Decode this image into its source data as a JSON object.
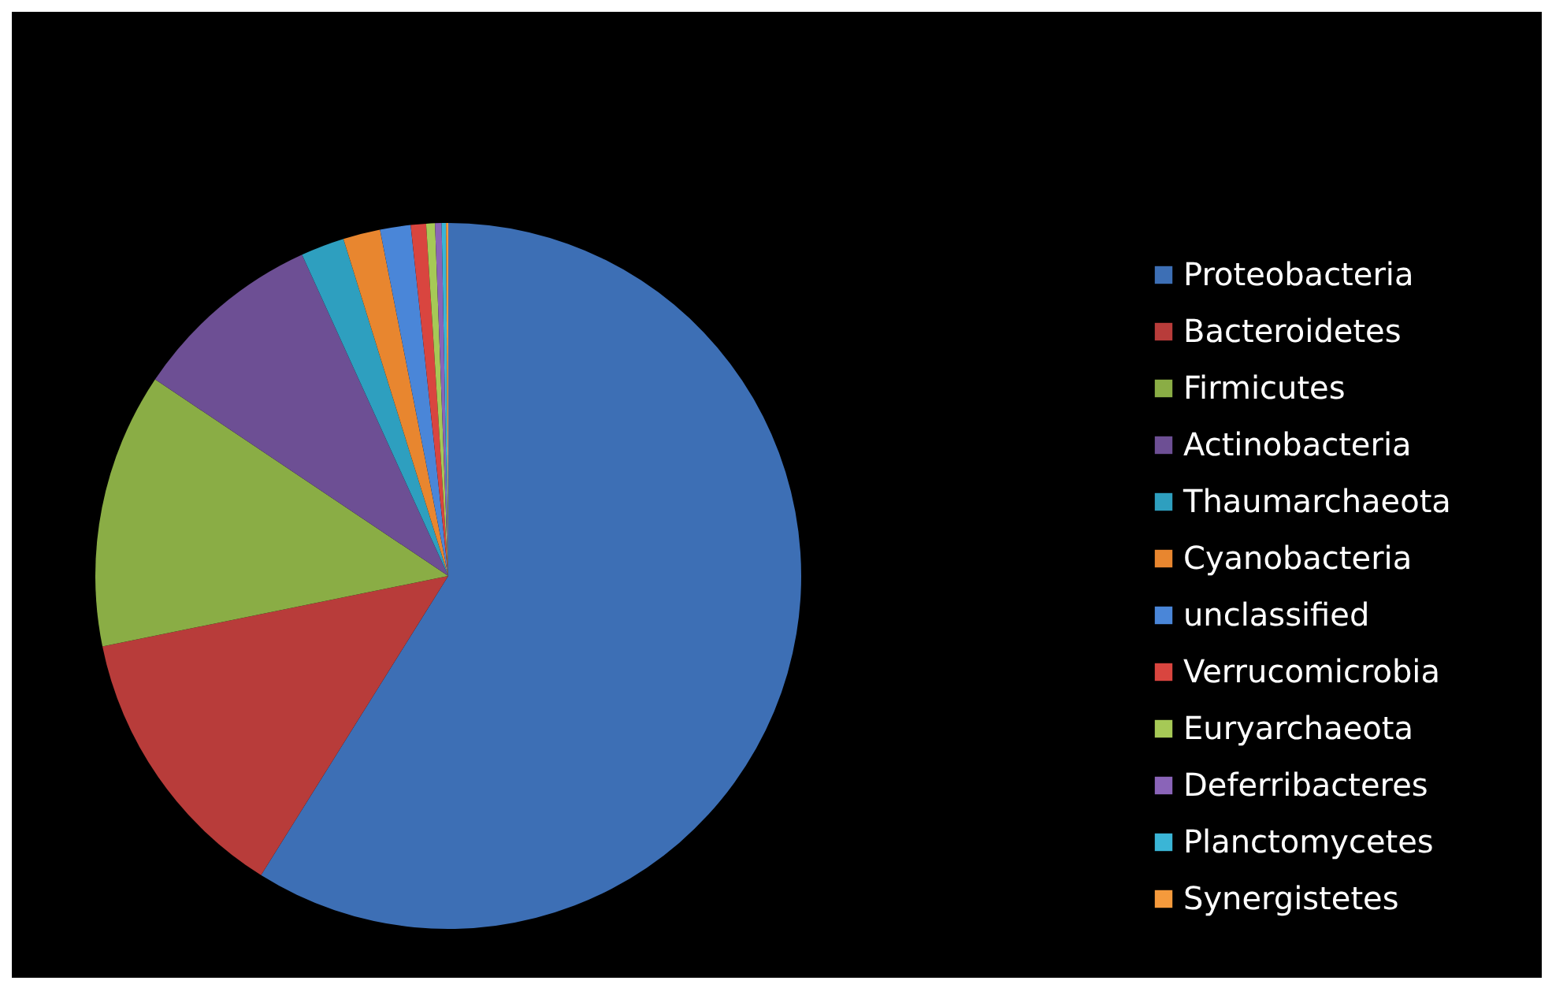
{
  "chart_data": {
    "type": "pie",
    "categories": [
      "Proteobacteria",
      "Bacteroidetes",
      "Firmicutes",
      "Actinobacteria",
      "Thaumarchaeota",
      "Cyanobacteria",
      "unclassified",
      "Verrucomicrobia",
      "Euryarchaeota",
      "Deferribacteres",
      "Planctomycetes",
      "Synergistetes"
    ],
    "values": [
      58.9,
      12.9,
      12.6,
      8.8,
      2.0,
      1.7,
      1.4,
      0.7,
      0.4,
      0.3,
      0.2,
      0.1
    ],
    "colors": [
      "#3d6fb5",
      "#b83c3a",
      "#8aad45",
      "#6d4f94",
      "#2e9fbf",
      "#e8862f",
      "#4a86d8",
      "#d9453f",
      "#a6c956",
      "#8a64b8",
      "#3ab5d6",
      "#f59a3c"
    ],
    "legend": "right"
  }
}
